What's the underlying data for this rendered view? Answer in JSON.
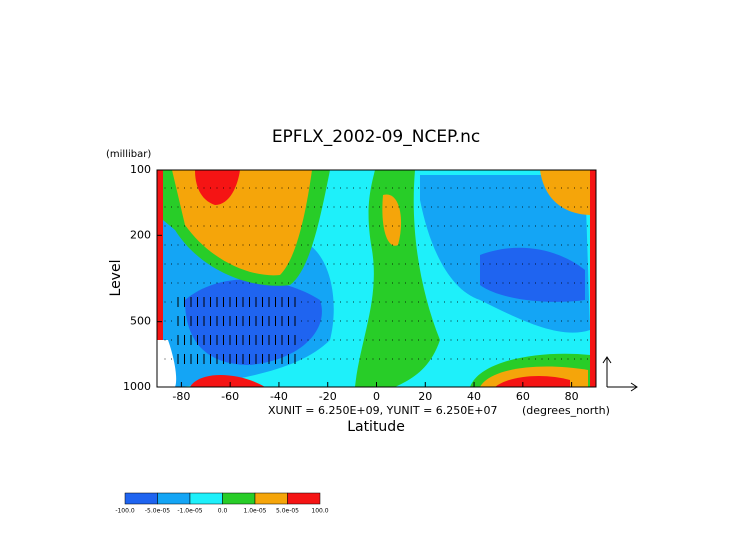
{
  "chart_data": {
    "type": "contour",
    "title": "EPFLX_2002-09_NCEP.nc",
    "y_unit": "(millibar)",
    "y_label": "Level",
    "x_label": "Latitude",
    "x_unit": "(degrees_north)",
    "note": "XUNIT = 6.250E+09, YUNIT = 6.250E+07",
    "xlim": [
      -90,
      90
    ],
    "xticks": [
      -80,
      -60,
      -40,
      -20,
      0,
      20,
      40,
      60,
      80
    ],
    "ylim": [
      1000,
      100
    ],
    "yticks": [
      100,
      200,
      500,
      1000
    ],
    "y_log": true,
    "colorbar": {
      "levels": [
        {
          "value": -100,
          "label": "-100.0"
        },
        {
          "value": -5e-05,
          "label": "-5.0e-05"
        },
        {
          "value": -1e-05,
          "label": "-1.0e-05"
        },
        {
          "value": 0,
          "label": "0.0"
        },
        {
          "value": 1e-05,
          "label": "1.0e-05"
        },
        {
          "value": 5e-05,
          "label": "5.0e-05"
        },
        {
          "value": 100,
          "label": "100.0"
        }
      ],
      "colors": [
        "#1f64f0",
        "#14a5f5",
        "#1ef0fa",
        "#28cd28",
        "#f5a50a",
        "#f51414"
      ]
    }
  }
}
